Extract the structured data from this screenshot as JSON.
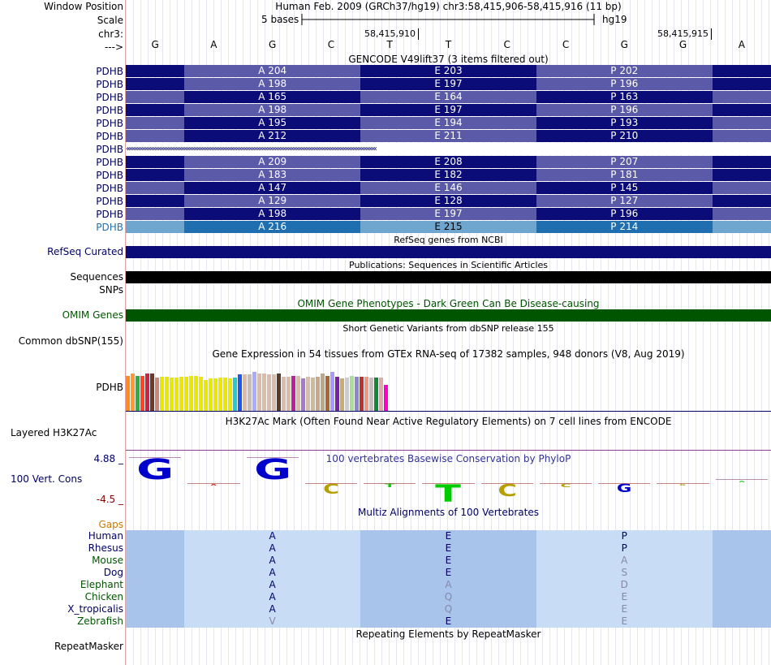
{
  "labels": {
    "window_position": "Window Position",
    "scale": "Scale",
    "chr": "chr3:",
    "arrow": "--->",
    "refseq": "RefSeq Curated",
    "sequences": "Sequences",
    "snps": "SNPs",
    "omim": "OMIM Genes",
    "dbsnp": "Common dbSNP(155)",
    "pdhb_gtex": "PDHB",
    "h3k27ac": "Layered H3K27Ac",
    "cons_max": "4.88 _",
    "cons": "100 Vert. Cons",
    "cons_min": "-4.5 _",
    "gaps": "Gaps",
    "repeatmasker": "RepeatMasker"
  },
  "header": {
    "position": "Human Feb. 2009 (GRCh37/hg19)   chr3:58,415,906-58,415,916 (11 bp)",
    "scale_text": "5 bases",
    "scale_db": "hg19",
    "coord_1": "58,415,910",
    "coord_2": "58,415,915"
  },
  "bases": [
    "G",
    "A",
    "G",
    "C",
    "T",
    "T",
    "C",
    "C",
    "G",
    "G",
    "A"
  ],
  "track_titles": {
    "gencode": "GENCODE V49lift37 (3 items filtered out)",
    "refseq": "RefSeq genes from NCBI",
    "publications": "Publications: Sequences in Scientific Articles",
    "omim": "OMIM Gene Phenotypes - Dark Green Can Be Disease-causing",
    "dbsnp": "Short Genetic Variants from dbSNP release 155",
    "gtex": "Gene Expression in 54 tissues from GTEx RNA-seq of 17382 samples, 948 donors (V8, Aug 2019)",
    "h3k27ac": "H3K27Ac Mark (Often Found Near Active Regulatory Elements) on 7 cell lines from ENCODE",
    "cons": "100 vertebrates Basewise Conservation by PhyloP",
    "multiz": "Multiz Alignments of 100 Vertebrates",
    "repeatmasker": "Repeating Elements by RepeatMasker"
  },
  "gencode_rows": [
    {
      "label": "PDHB",
      "a": "A 204",
      "e": "E 203",
      "p": "P 202",
      "style": "x"
    },
    {
      "label": "PDHB",
      "a": "A 198",
      "e": "E 197",
      "p": "P 196",
      "style": "x"
    },
    {
      "label": "PDHB",
      "a": "A 165",
      "e": "E 164",
      "p": "P 163",
      "style": "y"
    },
    {
      "label": "PDHB",
      "a": "A 198",
      "e": "E 197",
      "p": "P 196",
      "style": "x"
    },
    {
      "label": "PDHB",
      "a": "A 195",
      "e": "E 194",
      "p": "P 193",
      "style": "y"
    },
    {
      "label": "PDHB",
      "a": "A 212",
      "e": "E 211",
      "p": "P 210",
      "style": "y"
    },
    {
      "label": "PDHB",
      "arrows": "‹‹‹‹‹‹‹‹‹‹‹‹‹‹‹‹‹‹‹‹‹‹‹‹‹‹‹‹‹‹‹‹‹‹‹‹‹‹‹‹‹‹‹‹‹‹‹‹‹‹‹‹‹‹‹‹‹‹‹‹‹‹‹‹‹‹‹‹‹‹‹‹‹‹‹‹‹‹‹‹‹‹‹‹‹‹‹‹‹‹‹‹‹‹‹‹‹‹‹‹‹‹‹‹‹‹‹‹‹‹‹‹‹‹‹‹‹‹‹‹‹‹‹‹‹‹‹‹‹‹‹‹‹‹‹‹‹‹‹‹‹‹‹‹‹‹‹‹‹‹‹‹‹‹",
      "style": "intron"
    },
    {
      "label": "PDHB",
      "a": "A 209",
      "e": "E 208",
      "p": "P 207",
      "style": "x"
    },
    {
      "label": "PDHB",
      "a": "A 183",
      "e": "E 182",
      "p": "P 181",
      "style": "x"
    },
    {
      "label": "PDHB",
      "a": "A 147",
      "e": "E 146",
      "p": "P 145",
      "style": "y"
    },
    {
      "label": "PDHB",
      "a": "A 129",
      "e": "E 128",
      "p": "P 127",
      "style": "x"
    },
    {
      "label": "PDHB",
      "a": "A 198",
      "e": "E 197",
      "p": "P 196",
      "style": "y"
    },
    {
      "label": "PDHB",
      "a": "A 216",
      "e": "E 215",
      "p": "P 214",
      "style": "light"
    }
  ],
  "gtex_colors": [
    "#ff8c1a",
    "#ff9933",
    "#33aa44",
    "#ff4422",
    "#cc2244",
    "#6b3a2a",
    "#cc8877",
    "#e8e800",
    "#e8e800",
    "#e8e800",
    "#e8e800",
    "#e8e800",
    "#e8e800",
    "#e8e800",
    "#e8e800",
    "#e8e800",
    "#e8e800",
    "#e8e800",
    "#e8e800",
    "#e8e800",
    "#e8e800",
    "#e8e800",
    "#22cccc",
    "#2255ee",
    "#ddbbaa",
    "#ccbbbb",
    "#aaaaff",
    "#ddbbaa",
    "#ddbbaa",
    "#ddbbaa",
    "#ddbbaa",
    "#5a3a2a",
    "#ddbbaa",
    "#ddbbaa",
    "#bb2299",
    "#ddbbaa",
    "#aa77cc",
    "#ddbbaa",
    "#ccbb99",
    "#c8a888",
    "#bba888",
    "#aa6633",
    "#aa99ff",
    "#7722aa",
    "#ccaa77",
    "#cccccc",
    "#aadd99",
    "#8888cc",
    "#bb3333",
    "#ee9988",
    "#ccbbbb",
    "#118833",
    "#ddaaaa",
    "#ff00cc"
  ],
  "gtex_heights": [
    0.7,
    0.74,
    0.7,
    0.7,
    0.74,
    0.74,
    0.66,
    0.68,
    0.68,
    0.66,
    0.66,
    0.68,
    0.68,
    0.7,
    0.7,
    0.68,
    0.62,
    0.64,
    0.64,
    0.66,
    0.66,
    0.64,
    0.66,
    0.72,
    0.72,
    0.72,
    0.78,
    0.74,
    0.74,
    0.72,
    0.72,
    0.74,
    0.68,
    0.68,
    0.7,
    0.7,
    0.64,
    0.68,
    0.66,
    0.68,
    0.74,
    0.7,
    0.78,
    0.68,
    0.64,
    0.66,
    0.7,
    0.68,
    0.68,
    0.68,
    0.66,
    0.66,
    0.66,
    0.52
  ],
  "logo": [
    {
      "base": "G",
      "color": "#0000cc",
      "score": 0.85,
      "sign": "pos"
    },
    {
      "base": "A",
      "color": "#cc0000",
      "score": 0.05,
      "sign": "neg"
    },
    {
      "base": "G",
      "color": "#0000cc",
      "score": 0.85,
      "sign": "pos"
    },
    {
      "base": "C",
      "color": "#b5a000",
      "score": 0.4,
      "sign": "neg"
    },
    {
      "base": "T",
      "color": "#00cc00",
      "score": 0.15,
      "sign": "neg"
    },
    {
      "base": "T",
      "color": "#00cc00",
      "score": 0.7,
      "sign": "neg"
    },
    {
      "base": "C",
      "color": "#b5a000",
      "score": 0.5,
      "sign": "neg"
    },
    {
      "base": "C",
      "color": "#b5a000",
      "score": 0.15,
      "sign": "neg"
    },
    {
      "base": "G",
      "color": "#0000cc",
      "score": 0.35,
      "sign": "neg"
    },
    {
      "base": "G",
      "color": "#b5a000",
      "score": 0.03,
      "sign": "neg"
    },
    {
      "base": "A",
      "color": "#00cc00",
      "score": 0.02,
      "sign": "pos"
    }
  ],
  "multiz": [
    {
      "species": "Human",
      "a": "A",
      "e": "E",
      "p": "P",
      "pg": false,
      "ag": false,
      "eg": false,
      "color": "#000066"
    },
    {
      "species": "Rhesus",
      "a": "A",
      "e": "E",
      "p": "P",
      "pg": false,
      "ag": false,
      "eg": false,
      "color": "#000066"
    },
    {
      "species": "Mouse",
      "a": "A",
      "e": "E",
      "p": "A",
      "pg": true,
      "ag": false,
      "eg": false,
      "color": "#005500"
    },
    {
      "species": "Dog",
      "a": "A",
      "e": "E",
      "p": "S",
      "pg": true,
      "ag": false,
      "eg": false,
      "color": "#000066"
    },
    {
      "species": "Elephant",
      "a": "A",
      "e": "A",
      "p": "D",
      "pg": true,
      "ag": false,
      "eg": true,
      "color": "#005500"
    },
    {
      "species": "Chicken",
      "a": "A",
      "e": "Q",
      "p": "E",
      "pg": true,
      "ag": false,
      "eg": true,
      "color": "#005500"
    },
    {
      "species": "X_tropicalis",
      "a": "A",
      "e": "Q",
      "p": "E",
      "pg": true,
      "ag": false,
      "eg": true,
      "color": "#000066"
    },
    {
      "species": "Zebrafish",
      "a": "V",
      "e": "E",
      "p": "E",
      "pg": true,
      "ag": true,
      "eg": false,
      "color": "#005500"
    }
  ],
  "colors": {
    "dark": "#0c0c78",
    "mid": "#5a5aa8",
    "light_a": "#1f6fb0",
    "light_b": "#6fa6d0",
    "omim": "#005500",
    "multiz_a": "#a8c4ea",
    "multiz_b": "#c8dcf6"
  }
}
